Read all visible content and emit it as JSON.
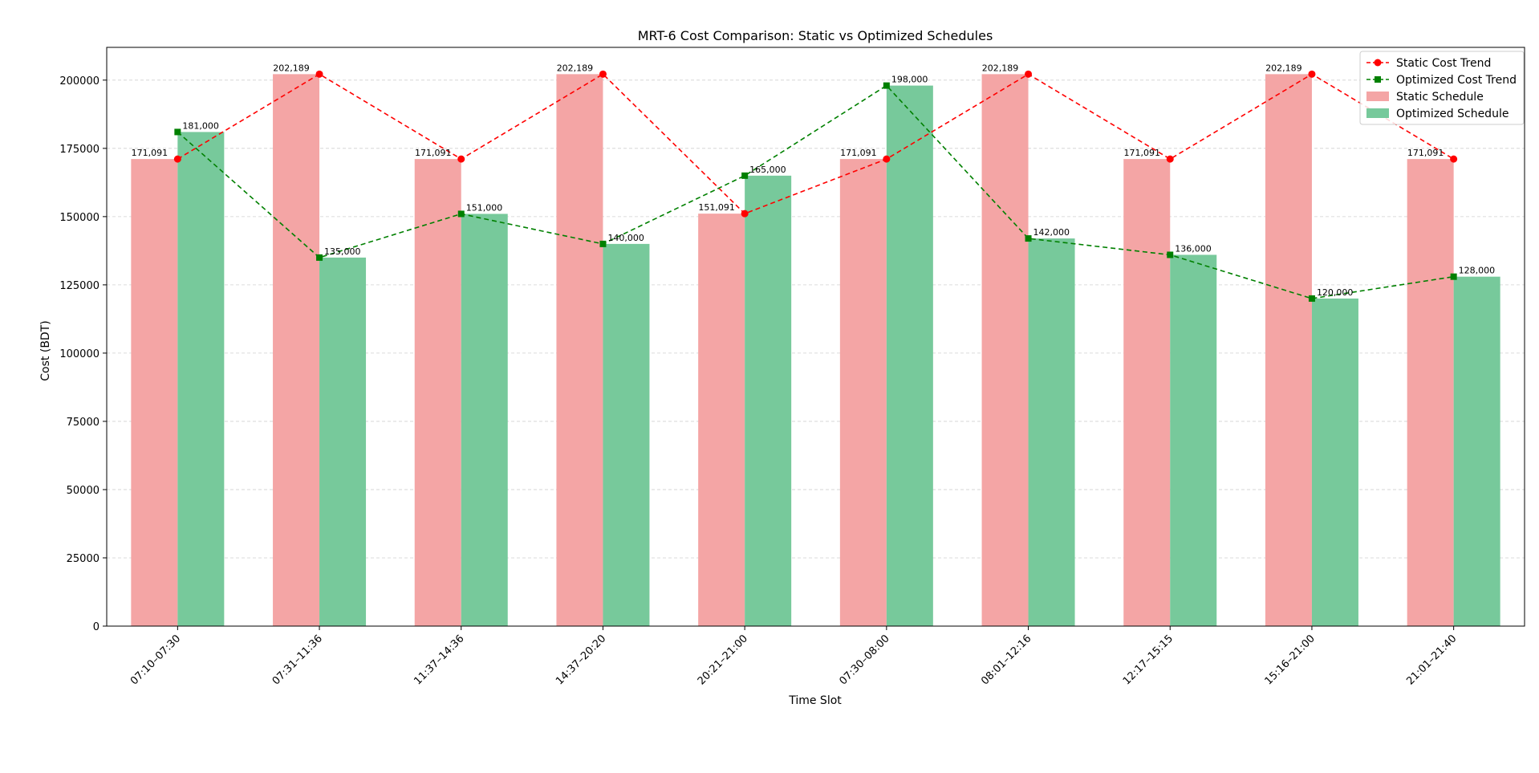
{
  "chart_data": {
    "type": "bar",
    "title": "MRT-6 Cost Comparison: Static vs Optimized Schedules",
    "xlabel": "Time Slot",
    "ylabel": "Cost (BDT)",
    "ylim": [
      0,
      212000
    ],
    "yticks": [
      0,
      25000,
      50000,
      75000,
      100000,
      125000,
      150000,
      175000,
      200000
    ],
    "grid": true,
    "legend_position": "top-right",
    "categories": [
      "07:10–07:30",
      "07:31–11:36",
      "11:37–14:36",
      "14:37–20:20",
      "20:21–21:00",
      "07:30–08:00",
      "08:01–12:16",
      "12:17–15:15",
      "15:16–21:00",
      "21:01–21:40"
    ],
    "series": [
      {
        "name": "Static Schedule",
        "kind": "bar",
        "color": "#f4a5a5",
        "values": [
          171091,
          202189,
          171091,
          202189,
          151091,
          171091,
          202189,
          171091,
          202189,
          171091
        ],
        "labels": [
          "171,091",
          "202,189",
          "171,091",
          "202,189",
          "151,091",
          "171,091",
          "202,189",
          "171,091",
          "202,189",
          "171,091"
        ]
      },
      {
        "name": "Optimized Schedule",
        "kind": "bar",
        "color": "#77c99b",
        "values": [
          181000,
          135000,
          151000,
          140000,
          165000,
          198000,
          142000,
          136000,
          120000,
          128000
        ],
        "labels": [
          "181,000",
          "135,000",
          "151,000",
          "140,000",
          "165,000",
          "198,000",
          "142,000",
          "136,000",
          "120,000",
          "128,000"
        ]
      },
      {
        "name": "Static Cost Trend",
        "kind": "line",
        "color": "#ff0000",
        "marker": "circle",
        "values": [
          171091,
          202189,
          171091,
          202189,
          151091,
          171091,
          202189,
          171091,
          202189,
          171091
        ]
      },
      {
        "name": "Optimized Cost Trend",
        "kind": "line",
        "color": "#008000",
        "marker": "square",
        "values": [
          181000,
          135000,
          151000,
          140000,
          165000,
          198000,
          142000,
          136000,
          120000,
          128000
        ]
      }
    ],
    "legend": [
      {
        "label": "Static Cost Trend",
        "series": 2
      },
      {
        "label": "Optimized Cost Trend",
        "series": 3
      },
      {
        "label": "Static Schedule",
        "series": 0
      },
      {
        "label": "Optimized Schedule",
        "series": 1
      }
    ]
  }
}
